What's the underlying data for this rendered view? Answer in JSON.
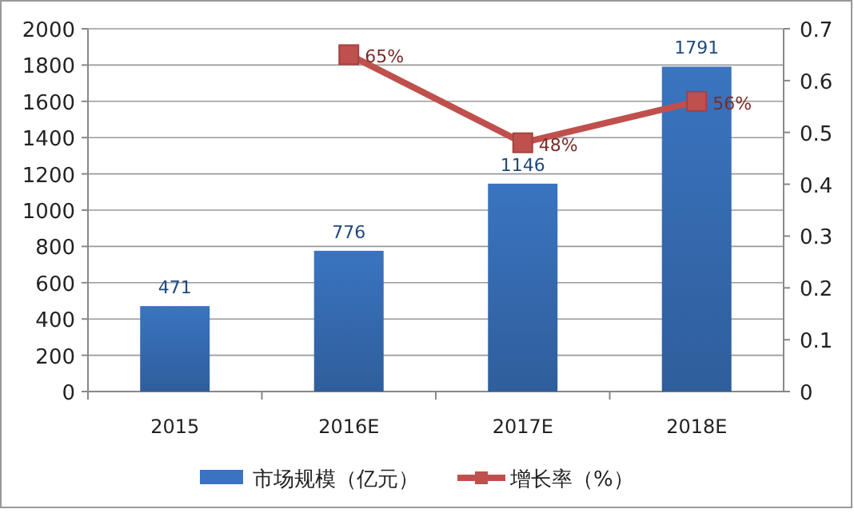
{
  "chart_data": {
    "type": "bar",
    "categories": [
      "2015",
      "2016E",
      "2017E",
      "2018E"
    ],
    "series": [
      {
        "name": "市场规模（亿元）",
        "color": "#3a74c0",
        "values": [
          471,
          776,
          1146,
          1791
        ],
        "value_labels": [
          "471",
          "776",
          "1146",
          "1791"
        ]
      },
      {
        "name": "增长率（%）",
        "type": "line",
        "axis": "y2",
        "color": "#c0504d",
        "marker": "square",
        "values": [
          null,
          0.65,
          0.48,
          0.56
        ],
        "value_labels": [
          null,
          "65%",
          "48%",
          "56%"
        ]
      }
    ],
    "ylim": [
      0,
      2000
    ],
    "yticks": [
      0,
      200,
      400,
      600,
      800,
      1000,
      1200,
      1400,
      1600,
      1800,
      2000
    ],
    "y2lim": [
      0,
      0.7
    ],
    "y2ticks": [
      0,
      0.1,
      0.2,
      0.3,
      0.4,
      0.5,
      0.6,
      0.7
    ],
    "grid": "y",
    "legend": "bottom"
  }
}
